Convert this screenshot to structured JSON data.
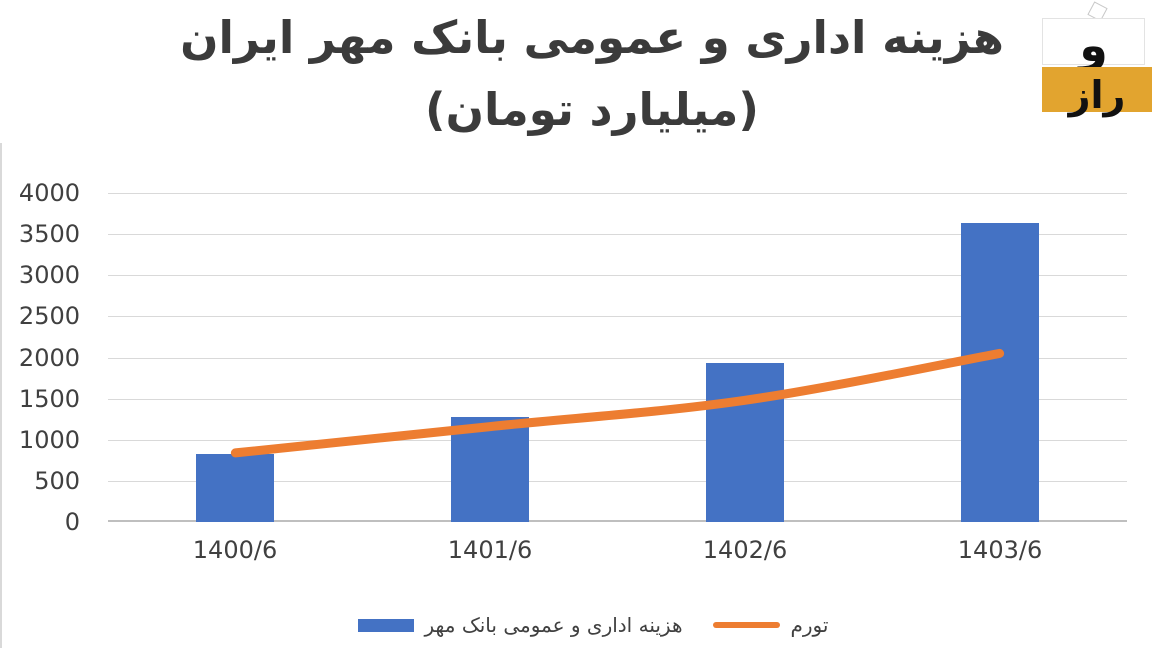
{
  "header": {
    "title_line1": "هزینه اداری و عمومی بانک مهر ایران",
    "title_line2": "(میلیارد تومان)"
  },
  "logo": {
    "top_text": "و",
    "bottom_text": "راز"
  },
  "chart_data": {
    "type": "bar",
    "title": "هزینه اداری و عمومی بانک مهر ایران (میلیارد تومان)",
    "categories": [
      "1400/6",
      "1401/6",
      "1402/6",
      "1403/6"
    ],
    "series": [
      {
        "name": "هزینه اداری و عمومی بانک مهر",
        "type": "bar",
        "color": "#4472C4",
        "values": [
          830,
          1280,
          1930,
          3640
        ]
      },
      {
        "name": "تورم",
        "type": "line",
        "color": "#ED7D31",
        "values": [
          840,
          1160,
          1480,
          2050
        ]
      }
    ],
    "ylim": [
      0,
      4000
    ],
    "yticks": [
      0,
      500,
      1000,
      1500,
      2000,
      2500,
      3000,
      3500,
      4000
    ],
    "grid": true,
    "legend_position": "bottom"
  },
  "colors": {
    "bar_blue": "#4472C4",
    "line_orange": "#ED7D31",
    "gridline": "#D9D9D9",
    "axis_line": "#BFBFBF",
    "text": "#404040",
    "title_text": "#3B3B3B",
    "logo_yellow": "#E2A42F"
  }
}
